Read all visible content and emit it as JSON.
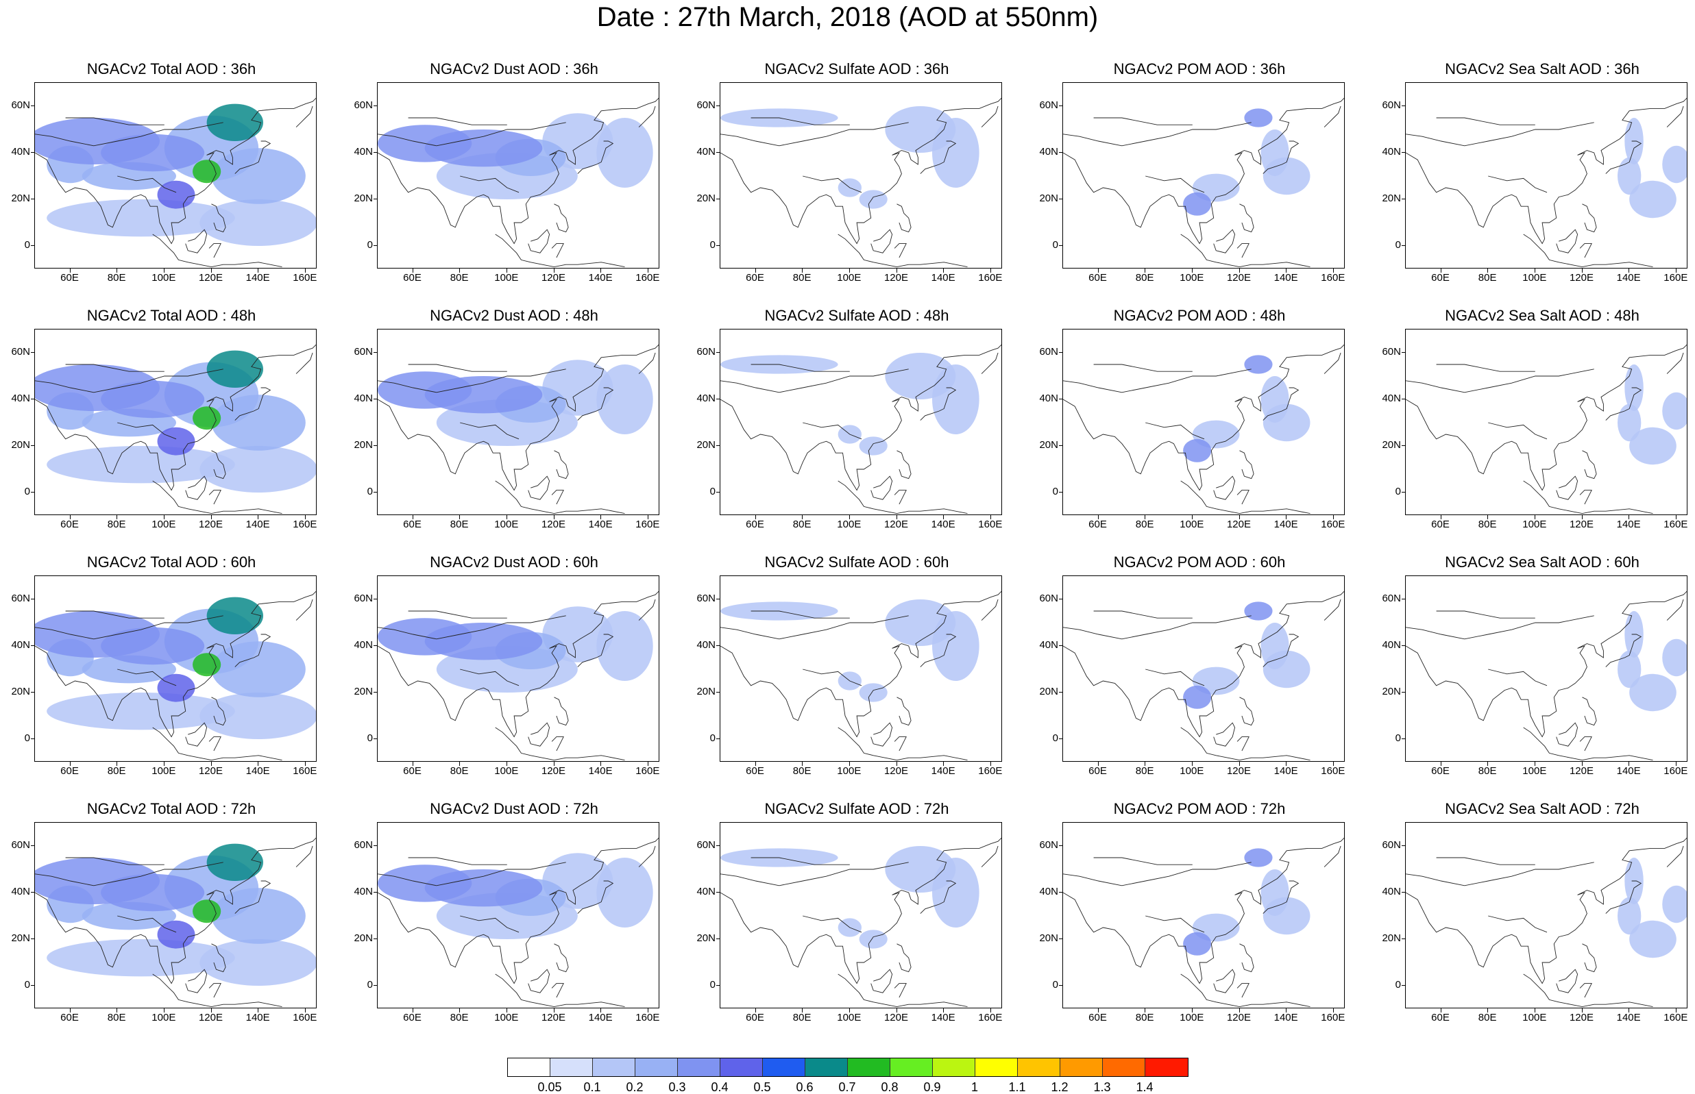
{
  "title": "Date : 27th March, 2018 (AOD at 550nm)",
  "x_ticks": [
    "60E",
    "80E",
    "100E",
    "120E",
    "140E",
    "160E"
  ],
  "y_ticks": [
    "60N",
    "40N",
    "20N",
    "0"
  ],
  "rows": [
    {
      "hour": "36h",
      "titles": [
        "NGACv2 Total AOD : 36h",
        "NGACv2 Dust AOD : 36h",
        "NGACv2 Sulfate AOD : 36h",
        "NGACv2 POM AOD : 36h",
        "NGACv2 Sea Salt AOD : 36h"
      ]
    },
    {
      "hour": "48h",
      "titles": [
        "NGACv2 Total AOD : 48h",
        "NGACv2 Dust AOD : 48h",
        "NGACv2 Sulfate AOD : 48h",
        "NGACv2 POM AOD : 48h",
        "NGACv2 Sea Salt AOD : 48h"
      ]
    },
    {
      "hour": "60h",
      "titles": [
        "NGACv2 Total AOD : 60h",
        "NGACv2 Dust AOD : 60h",
        "NGACv2 Sulfate AOD : 60h",
        "NGACv2 POM AOD : 60h",
        "NGACv2 Sea Salt AOD : 60h"
      ]
    },
    {
      "hour": "72h",
      "titles": [
        "NGACv2 Total AOD : 72h",
        "NGACv2 Dust AOD : 72h",
        "NGACv2 Sulfate AOD : 72h",
        "NGACv2 POM AOD : 72h",
        "NGACv2 Sea Salt  AOD : 72h"
      ]
    }
  ],
  "colorbar": {
    "labels": [
      "0.05",
      "0.1",
      "0.2",
      "0.3",
      "0.4",
      "0.5",
      "0.6",
      "0.7",
      "0.8",
      "0.9",
      "1",
      "1.1",
      "1.2",
      "1.3",
      "1.4"
    ],
    "colors": [
      "#ffffff",
      "#d6e0fb",
      "#b4c6f7",
      "#98b1f4",
      "#7f93f1",
      "#5f63ea",
      "#1f5cf0",
      "#0a8a8a",
      "#22bb22",
      "#66ee22",
      "#bbf511",
      "#ffff00",
      "#ffc400",
      "#ff9a00",
      "#ff6a00",
      "#ff1a00"
    ]
  }
}
